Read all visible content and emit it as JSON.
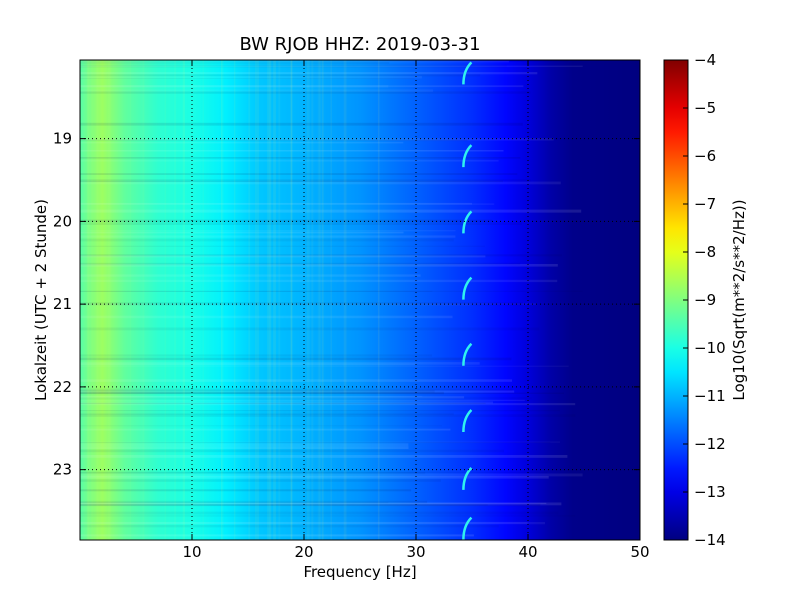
{
  "chart_data": {
    "type": "heatmap",
    "title": "BW RJOB HHZ: 2019-03-31",
    "xlabel": "Frequency [Hz]",
    "ylabel": "Lokalzeit (UTC + 2 Stunde)",
    "xlim": [
      0,
      50
    ],
    "ylim": [
      18.05,
      23.85
    ],
    "y_inverted": true,
    "x_ticks": [
      10,
      20,
      30,
      40,
      50
    ],
    "y_ticks": [
      19,
      20,
      21,
      22,
      23
    ],
    "grid": true,
    "colormap": "jet",
    "colorbar": {
      "label": "Log10(Sqrt(m**2/s**2/Hz))",
      "range": [
        -14,
        -4
      ],
      "ticks": [
        -4,
        -5,
        -6,
        -7,
        -8,
        -9,
        -10,
        -11,
        -12,
        -13,
        -14
      ]
    },
    "psd_profile": {
      "frequency_hz": [
        0,
        1,
        2,
        4,
        7,
        10,
        13,
        16,
        20,
        25,
        30,
        35,
        38,
        40,
        42,
        44,
        50
      ],
      "level": [
        -9.4,
        -9.0,
        -8.7,
        -9.3,
        -9.8,
        -10.0,
        -10.4,
        -10.8,
        -11.0,
        -11.3,
        -11.8,
        -12.3,
        -12.7,
        -13.1,
        -13.6,
        -13.9,
        -14.0
      ]
    },
    "hourly_line_feature": {
      "frequency_hz": 34.5,
      "times_h": [
        18.2,
        19.2,
        20.0,
        20.8,
        21.6,
        22.4,
        23.1,
        23.7
      ]
    }
  }
}
